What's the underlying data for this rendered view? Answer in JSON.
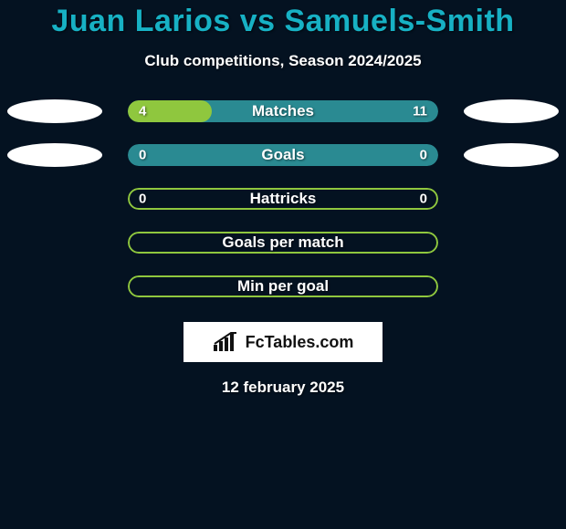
{
  "title_color": "#17b1c4",
  "title": "Juan Larios vs Samuels-Smith",
  "subtitle": "Club competitions, Season 2024/2025",
  "colors": {
    "bar_green": "#8fc73e",
    "bar_teal": "#2a8a92",
    "border_green": "#8fc73e",
    "ellipse": "#ffffff"
  },
  "rows": [
    {
      "label": "Matches",
      "left_value": "4",
      "right_value": "11",
      "fill_percent": 27,
      "bg_color": "#2a8a92",
      "fill_color": "#8fc73e",
      "bordered": false,
      "show_left_ellipse": true,
      "show_right_ellipse": true
    },
    {
      "label": "Goals",
      "left_value": "0",
      "right_value": "0",
      "fill_percent": 0,
      "bg_color": "#2a8a92",
      "fill_color": "#8fc73e",
      "bordered": false,
      "show_left_ellipse": true,
      "show_right_ellipse": true
    },
    {
      "label": "Hattricks",
      "left_value": "0",
      "right_value": "0",
      "fill_percent": 0,
      "bg_color": "transparent",
      "fill_color": "transparent",
      "bordered": true,
      "border_color": "#8fc73e",
      "show_left_ellipse": false,
      "show_right_ellipse": false
    },
    {
      "label": "Goals per match",
      "left_value": "",
      "right_value": "",
      "fill_percent": 0,
      "bg_color": "transparent",
      "fill_color": "transparent",
      "bordered": true,
      "border_color": "#8fc73e",
      "show_left_ellipse": false,
      "show_right_ellipse": false
    },
    {
      "label": "Min per goal",
      "left_value": "",
      "right_value": "",
      "fill_percent": 0,
      "bg_color": "transparent",
      "fill_color": "transparent",
      "bordered": true,
      "border_color": "#8fc73e",
      "show_left_ellipse": false,
      "show_right_ellipse": false
    }
  ],
  "logo_text": "FcTables.com",
  "date": "12 february 2025"
}
